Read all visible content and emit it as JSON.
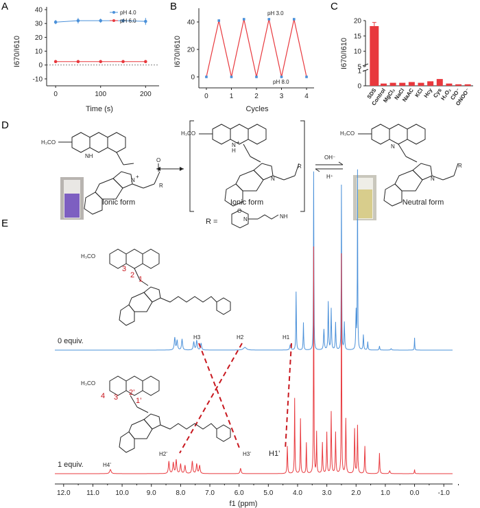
{
  "panels": {
    "a": "A",
    "b": "B",
    "c": "C",
    "d": "D",
    "e": "E"
  },
  "colors": {
    "blue": "#4a90d9",
    "red": "#e8383d",
    "darkred": "#c8171e"
  },
  "chart_data": [
    {
      "type": "line",
      "panel": "A",
      "xlabel": "Time (s)",
      "ylabel": "I670/I610",
      "xlim": [
        -20,
        230
      ],
      "ylim": [
        -15,
        42
      ],
      "xticks": [
        0,
        100,
        200
      ],
      "yticks": [
        -10,
        0,
        10,
        20,
        30,
        40
      ],
      "series": [
        {
          "name": "pH 4.0",
          "color": "#4a90d9",
          "x": [
            0,
            50,
            100,
            150,
            200
          ],
          "y": [
            31,
            32,
            32,
            32,
            31.5
          ],
          "err": [
            1.5,
            2,
            1.5,
            1,
            2.5
          ]
        },
        {
          "name": "pH 6.0",
          "color": "#e8383d",
          "x": [
            0,
            50,
            100,
            150,
            200
          ],
          "y": [
            2.5,
            2.5,
            2.5,
            2.5,
            2.5
          ],
          "err": [
            0.3,
            0.3,
            0.3,
            0.3,
            0.3
          ]
        }
      ],
      "legend": "top-right",
      "baseline": 0
    },
    {
      "type": "line",
      "panel": "B",
      "xlabel": "Cycles",
      "ylabel": "I670/I610",
      "xlim": [
        -0.3,
        4.3
      ],
      "ylim": [
        -8,
        50
      ],
      "xticks": [
        0,
        1,
        2,
        3,
        4
      ],
      "yticks": [
        0,
        20,
        40
      ],
      "x": [
        0,
        0.5,
        1,
        1.5,
        2,
        2.5,
        3,
        3.5,
        4
      ],
      "y": [
        0,
        41,
        0,
        42,
        0,
        42,
        0,
        42,
        0
      ],
      "annotations": [
        "pH 3.0",
        "pH 8.0"
      ]
    },
    {
      "type": "bar",
      "panel": "C",
      "ylabel": "I670/I610",
      "categories": [
        "SDS",
        "Control",
        "MgCl2",
        "NaCl",
        "NaAC",
        "KCl",
        "Hcy",
        "Cys",
        "H2O2",
        "ClO-",
        "ONOO-"
      ],
      "category_labels": [
        "SDS",
        "Control",
        "MgCl₂",
        "NaCl",
        "NaAC",
        "KCl",
        "Hcy",
        "Cys",
        "H₂O₂",
        "ClO⁻",
        "ONOO⁻"
      ],
      "values": [
        18.2,
        0.15,
        0.2,
        0.2,
        0.25,
        0.2,
        0.3,
        0.45,
        0.15,
        0.1,
        0.1
      ],
      "yticks": [
        "0",
        "1",
        "5",
        "10",
        "15",
        "20"
      ],
      "broken_axis": true
    },
    {
      "type": "line",
      "panel": "E",
      "xlabel": "f1 (ppm)",
      "xlim": [
        12.3,
        -1.3
      ],
      "xticks": [
        "12.0",
        "11.0",
        "10.0",
        "9.0",
        "8.0",
        "7.0",
        "6.0",
        "5.0",
        "4.0",
        "3.0",
        "2.0",
        "1.0",
        "0.0",
        "-1.0"
      ],
      "series": [
        {
          "name": "0 equiv.",
          "color": "#4a90d9"
        },
        {
          "name": "1 equiv.",
          "color": "#e8383d"
        }
      ]
    }
  ],
  "scheme": {
    "labels": [
      "Ionic form",
      "Ionic form",
      "Neutral form"
    ],
    "r_label": "R =",
    "oh": "OH⁻",
    "h": "H⁺",
    "substituent_text": "H₃CO",
    "n": "N",
    "nh": "NH",
    "h_atom": "H",
    "r": "R",
    "o": "O",
    "plus": "+"
  },
  "nmr": {
    "spectrum_labels": [
      "0 equiv.",
      "1 equiv."
    ],
    "peaks_top": [
      "H3",
      "H2",
      "H1"
    ],
    "peaks_bottom": [
      "H2’",
      "H3’",
      "H1’",
      "H4’"
    ],
    "nums_top": [
      "3",
      "2",
      "1"
    ],
    "nums_bottom": [
      "4",
      "3",
      "2’",
      "1’"
    ]
  }
}
